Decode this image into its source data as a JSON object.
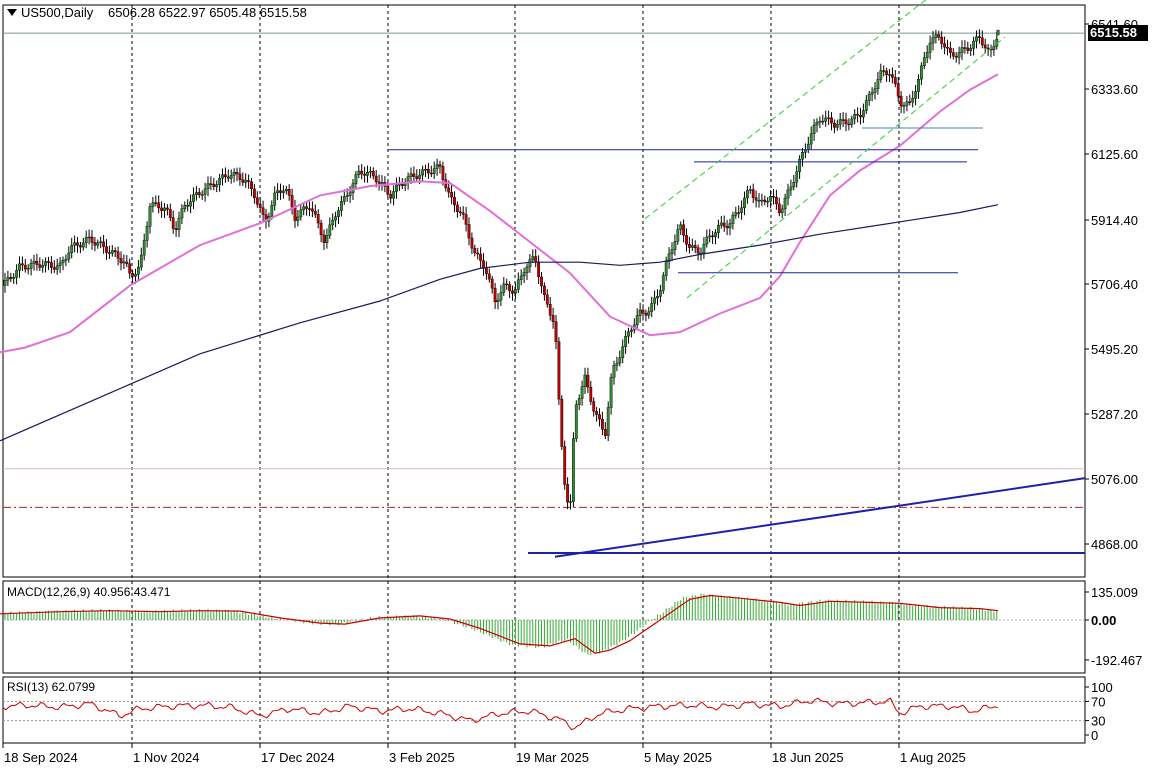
{
  "header": {
    "symbol": "US500,Daily",
    "ohlc": "6506.28 6522.97 6505.48 6515.58"
  },
  "current_price_label": "6515.58",
  "colors": {
    "bull_candle": "#2e8b2e",
    "bear_candle": "#c00000",
    "ma_fast": "#e070d8",
    "ma_slow": "#1a1a5c",
    "levels": "#1a23a8",
    "channel": "#33cc33",
    "macd_hist": "#33aa33",
    "macd_signal": "#cc0000",
    "rsi": "#cc0000"
  },
  "chart_data": [
    {
      "type": "candlestick",
      "title": "US500,Daily",
      "price_axis_ticks": [
        "6541.60",
        "6333.60",
        "6125.60",
        "5914.40",
        "5706.40",
        "5495.20",
        "5287.20",
        "5076.00",
        "4868.00"
      ],
      "date_axis_ticks": [
        "18 Sep 2024",
        "1 Nov 2024",
        "17 Dec 2024",
        "3 Feb 2025",
        "19 Mar 2025",
        "5 May 2025",
        "18 Jun 2025",
        "1 Aug 2025"
      ],
      "ylim": [
        4830,
        6600
      ],
      "last_close": 6515.58,
      "series": [
        {
          "name": "",
          "kind": "moving-average-fast",
          "points": [
            [
              0,
              5485
            ],
            [
              25,
              5500
            ],
            [
              70,
              5550
            ],
            [
              130,
              5700
            ],
            [
              200,
              5830
            ],
            [
              260,
              5900
            ],
            [
              320,
              5990
            ],
            [
              370,
              6020
            ],
            [
              420,
              6035
            ],
            [
              450,
              6030
            ],
            [
              490,
              5940
            ],
            [
              530,
              5840
            ],
            [
              570,
              5740
            ],
            [
              610,
              5600
            ],
            [
              650,
              5540
            ],
            [
              680,
              5550
            ],
            [
              720,
              5610
            ],
            [
              760,
              5660
            ],
            [
              780,
              5730
            ],
            [
              800,
              5840
            ],
            [
              830,
              5990
            ],
            [
              860,
              6070
            ],
            [
              900,
              6150
            ],
            [
              940,
              6260
            ],
            [
              970,
              6330
            ],
            [
              998,
              6380
            ]
          ]
        },
        {
          "name": "",
          "kind": "moving-average-slow",
          "points": [
            [
              0,
              5200
            ],
            [
              100,
              5340
            ],
            [
              200,
              5480
            ],
            [
              300,
              5580
            ],
            [
              380,
              5650
            ],
            [
              440,
              5720
            ],
            [
              480,
              5755
            ],
            [
              530,
              5775
            ],
            [
              580,
              5775
            ],
            [
              620,
              5765
            ],
            [
              660,
              5775
            ],
            [
              700,
              5800
            ],
            [
              760,
              5830
            ],
            [
              820,
              5865
            ],
            [
              900,
              5905
            ],
            [
              960,
              5935
            ],
            [
              998,
              5960
            ]
          ]
        }
      ],
      "horizontal_levels": [
        {
          "value": 6137,
          "x_from": 388,
          "x_to": 978
        },
        {
          "value": 6098,
          "x_from": 694,
          "x_to": 967
        },
        {
          "value": 6207,
          "x_from": 862,
          "x_to": 983
        },
        {
          "value": 5741,
          "x_from": 678,
          "x_to": 958
        },
        {
          "value": 4839,
          "x_from": 528,
          "x_to": 1085
        }
      ],
      "trendline": {
        "from": [
          555,
          4827
        ],
        "to": [
          1085,
          5080
        ]
      },
      "channel": {
        "lower": [
          [
            687,
            5660
          ],
          [
            1005,
            6500
          ]
        ],
        "upper": [
          [
            645,
            5915
          ],
          [
            930,
            6630
          ]
        ]
      }
    },
    {
      "type": "bar",
      "title": "MACD(12,26,9) 40.956 43.471",
      "axis_ticks": [
        "135.009",
        "0.00",
        "-192.467"
      ],
      "ylim": [
        -210,
        155
      ],
      "signal_points": [
        [
          0,
          30
        ],
        [
          60,
          40
        ],
        [
          110,
          45
        ],
        [
          160,
          40
        ],
        [
          200,
          45
        ],
        [
          240,
          43
        ],
        [
          280,
          10
        ],
        [
          320,
          -15
        ],
        [
          345,
          -20
        ],
        [
          380,
          10
        ],
        [
          420,
          20
        ],
        [
          450,
          5
        ],
        [
          480,
          -40
        ],
        [
          520,
          -115
        ],
        [
          550,
          -125
        ],
        [
          575,
          -90
        ],
        [
          595,
          -160
        ],
        [
          610,
          -145
        ],
        [
          630,
          -100
        ],
        [
          660,
          0
        ],
        [
          690,
          100
        ],
        [
          710,
          118
        ],
        [
          740,
          105
        ],
        [
          780,
          85
        ],
        [
          800,
          70
        ],
        [
          830,
          90
        ],
        [
          870,
          85
        ],
        [
          900,
          80
        ],
        [
          940,
          60
        ],
        [
          980,
          55
        ],
        [
          998,
          45
        ]
      ]
    },
    {
      "type": "line",
      "title": "RSI(13) 62.0799",
      "axis_ticks": [
        "100",
        "70",
        "30",
        "0"
      ],
      "ylim": [
        0,
        100
      ],
      "points": [
        [
          0,
          60
        ],
        [
          30,
          62
        ],
        [
          60,
          58
        ],
        [
          90,
          65
        ],
        [
          120,
          40
        ],
        [
          140,
          55
        ],
        [
          170,
          60
        ],
        [
          200,
          62
        ],
        [
          230,
          58
        ],
        [
          260,
          40
        ],
        [
          290,
          55
        ],
        [
          320,
          45
        ],
        [
          350,
          60
        ],
        [
          380,
          50
        ],
        [
          410,
          55
        ],
        [
          440,
          45
        ],
        [
          470,
          30
        ],
        [
          500,
          45
        ],
        [
          530,
          50
        ],
        [
          560,
          32
        ],
        [
          575,
          15
        ],
        [
          600,
          45
        ],
        [
          630,
          55
        ],
        [
          660,
          60
        ],
        [
          690,
          62
        ],
        [
          720,
          58
        ],
        [
          750,
          65
        ],
        [
          780,
          60
        ],
        [
          810,
          72
        ],
        [
          840,
          65
        ],
        [
          870,
          68
        ],
        [
          890,
          70
        ],
        [
          900,
          45
        ],
        [
          920,
          60
        ],
        [
          950,
          60
        ],
        [
          975,
          50
        ],
        [
          998,
          62
        ]
      ]
    }
  ]
}
